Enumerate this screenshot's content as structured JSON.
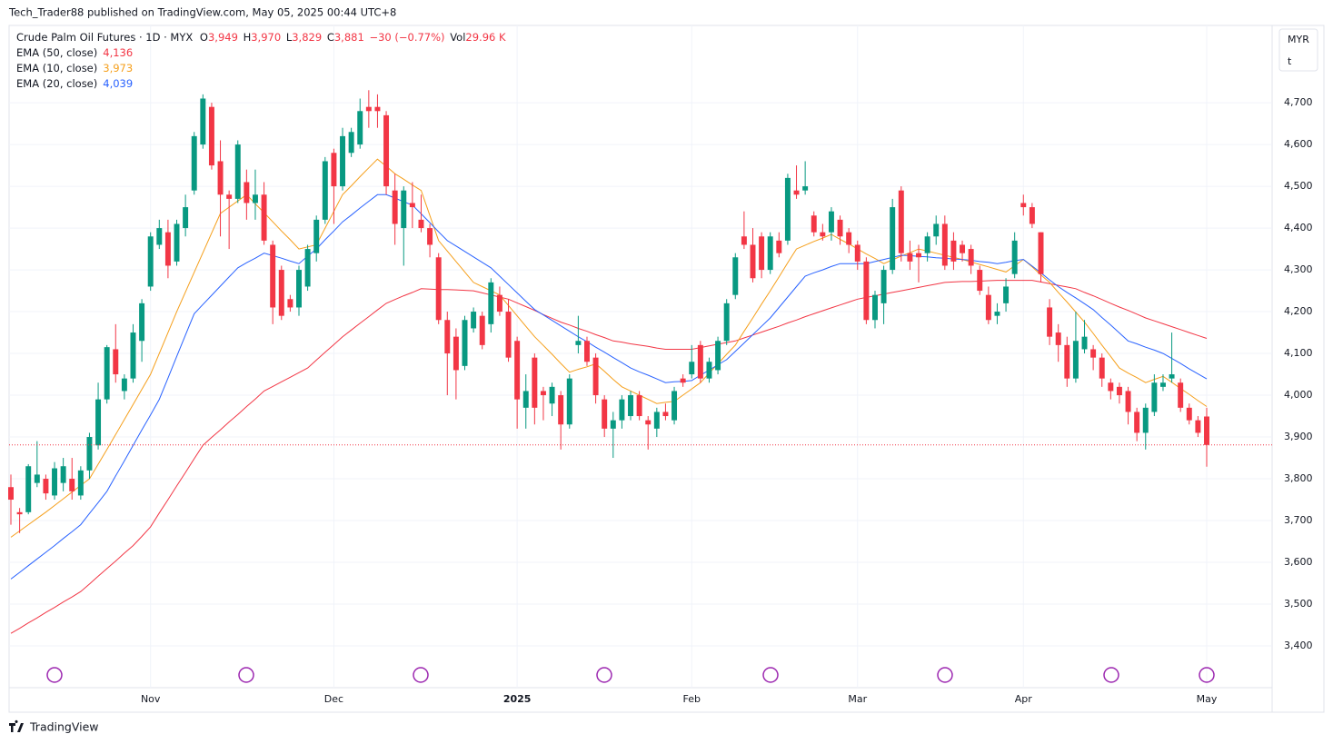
{
  "header": {
    "publisher": "Tech_Trader88 published on TradingView.com, May 05, 2025 00:44 UTC+8",
    "footer": "TradingView"
  },
  "chart_data": {
    "type": "candlestick",
    "symbol": "Crude Palm Oil Futures · 1D · MYX",
    "ohlc": [
      {
        "label": "O",
        "value": "3,949"
      },
      {
        "label": "H",
        "value": "3,970"
      },
      {
        "label": "L",
        "value": "3,829"
      },
      {
        "label": "C",
        "value": "3,881"
      }
    ],
    "change": "−30 (−0.77%)",
    "volume": {
      "label": "Vol",
      "value": "29.96 K"
    },
    "currency": "MYR",
    "unit": "t",
    "up_color": "#089981",
    "down_color": "#f23645",
    "grid": true,
    "categories": [
      null,
      null,
      null,
      null,
      null,
      null,
      null,
      null,
      null,
      null,
      null,
      null,
      null,
      null,
      null,
      null,
      "Nov",
      null,
      null,
      null,
      null,
      null,
      null,
      null,
      null,
      null,
      null,
      null,
      null,
      null,
      null,
      null,
      null,
      null,
      null,
      null,
      null,
      "Dec",
      null,
      null,
      null,
      null,
      null,
      null,
      null,
      null,
      null,
      null,
      null,
      null,
      null,
      null,
      null,
      null,
      null,
      null,
      null,
      null,
      "2025",
      null,
      null,
      null,
      null,
      null,
      null,
      null,
      null,
      null,
      null,
      null,
      null,
      null,
      null,
      null,
      null,
      null,
      null,
      null,
      "Feb",
      null,
      null,
      null,
      null,
      null,
      null,
      null,
      null,
      null,
      null,
      null,
      null,
      null,
      null,
      null,
      null,
      null,
      null,
      "Mar",
      null,
      null,
      null,
      null,
      null,
      null,
      null,
      null,
      null,
      null,
      null,
      null,
      null,
      null,
      null,
      null,
      null,
      null,
      "Apr",
      null,
      null,
      null,
      null,
      null,
      null,
      null,
      null,
      null,
      null,
      null,
      null,
      null,
      null,
      null,
      null,
      null,
      null,
      null,
      null,
      "May"
    ],
    "open": [
      3780,
      3720,
      3720,
      3790,
      3800,
      3760,
      3790,
      3800,
      3760,
      3820,
      3880,
      3990,
      4110,
      4010,
      4040,
      4130,
      4260,
      4360,
      4390,
      4320,
      4400,
      4490,
      4600,
      4690,
      4560,
      4480,
      4470,
      4510,
      4460,
      4480,
      4360,
      4300,
      4230,
      4210,
      4260,
      4340,
      4420,
      4580,
      4500,
      4580,
      4600,
      4690,
      4690,
      4670,
      4490,
      4400,
      4460,
      4420,
      4400,
      4330,
      4180,
      4140,
      4070,
      4160,
      4190,
      4170,
      4240,
      4200,
      4130,
      3970,
      4090,
      4010,
      3980,
      4000,
      3930,
      4120,
      4130,
      4090,
      3990,
      3920,
      3940,
      3950,
      4000,
      3940,
      3920,
      3960,
      3940,
      4040,
      4050,
      4120,
      4040,
      4060,
      4130,
      4240,
      4380,
      4360,
      4380,
      4300,
      4370,
      4370,
      4490,
      4490,
      4430,
      4390,
      4390,
      4420,
      4390,
      4360,
      4320,
      4180,
      4220,
      4300,
      4490,
      4340,
      4340,
      4340,
      4380,
      4410,
      4370,
      4360,
      4350,
      4300,
      4240,
      4190,
      4220,
      4290,
      4460,
      4450,
      4390,
      4210,
      4150,
      4120,
      4040,
      4110,
      4110,
      4090,
      4030,
      4020,
      4010,
      3960,
      3910,
      3960,
      4020,
      4040,
      4030,
      3970,
      3940,
      3949
    ],
    "high": [
      3810,
      3730,
      3835,
      3890,
      3810,
      3840,
      3850,
      3850,
      3830,
      3910,
      4030,
      4120,
      4170,
      4050,
      4170,
      4230,
      4390,
      4420,
      4420,
      4420,
      4480,
      4630,
      4720,
      4700,
      4610,
      4490,
      4610,
      4540,
      4540,
      4510,
      4370,
      4310,
      4240,
      4310,
      4360,
      4430,
      4570,
      4590,
      4640,
      4640,
      4710,
      4730,
      4720,
      4680,
      4530,
      4500,
      4510,
      4480,
      4410,
      4340,
      4200,
      4160,
      4190,
      4210,
      4200,
      4280,
      4260,
      4230,
      4140,
      4050,
      4100,
      4020,
      4030,
      4010,
      4050,
      4190,
      4140,
      4100,
      4000,
      3960,
      4000,
      4010,
      4010,
      3950,
      3970,
      3980,
      4020,
      4050,
      4120,
      4130,
      4090,
      4140,
      4230,
      4340,
      4440,
      4400,
      4390,
      4390,
      4390,
      4530,
      4550,
      4560,
      4440,
      4410,
      4450,
      4430,
      4400,
      4370,
      4330,
      4250,
      4310,
      4470,
      4500,
      4370,
      4360,
      4390,
      4430,
      4430,
      4390,
      4370,
      4360,
      4310,
      4260,
      4220,
      4280,
      4390,
      4480,
      4460,
      4390,
      4230,
      4170,
      4140,
      4200,
      4180,
      4120,
      4100,
      4040,
      4030,
      4020,
      3970,
      3980,
      4050,
      4050,
      4150,
      4040,
      3980,
      3950,
      3970
    ],
    "low": [
      3690,
      3670,
      3715,
      3780,
      3750,
      3750,
      3770,
      3750,
      3750,
      3800,
      3870,
      3980,
      4030,
      3990,
      4030,
      4080,
      4250,
      4350,
      4280,
      4310,
      4380,
      4480,
      4590,
      4540,
      4380,
      4350,
      4460,
      4420,
      4420,
      4360,
      4170,
      4180,
      4200,
      4190,
      4250,
      4320,
      4410,
      4410,
      4490,
      4570,
      4590,
      4640,
      4640,
      4480,
      4360,
      4310,
      4400,
      4390,
      4330,
      4170,
      4000,
      3990,
      4060,
      4150,
      4110,
      4150,
      4190,
      4080,
      3920,
      3920,
      3930,
      3940,
      3950,
      3870,
      3920,
      4100,
      4070,
      3980,
      3900,
      3850,
      3920,
      3940,
      3940,
      3870,
      3900,
      3940,
      3930,
      4020,
      4040,
      4030,
      4030,
      4050,
      4120,
      4230,
      4350,
      4270,
      4280,
      4290,
      4330,
      4360,
      4470,
      4480,
      4380,
      4370,
      4370,
      4360,
      4340,
      4300,
      4170,
      4160,
      4170,
      4290,
      4320,
      4300,
      4270,
      4320,
      4360,
      4300,
      4300,
      4320,
      4290,
      4240,
      4170,
      4170,
      4200,
      4280,
      4430,
      4400,
      4270,
      4120,
      4080,
      4020,
      4030,
      4100,
      4060,
      4020,
      3990,
      3980,
      3930,
      3890,
      3870,
      3950,
      4010,
      4030,
      3960,
      3930,
      3900,
      3829
    ],
    "close": [
      3750,
      3715,
      3830,
      3810,
      3765,
      3825,
      3830,
      3770,
      3820,
      3900,
      3990,
      4115,
      4050,
      4040,
      4150,
      4220,
      4380,
      4400,
      4310,
      4410,
      4450,
      4620,
      4710,
      4550,
      4480,
      4470,
      4600,
      4460,
      4480,
      4370,
      4210,
      4190,
      4210,
      4300,
      4350,
      4420,
      4560,
      4500,
      4620,
      4630,
      4680,
      4680,
      4680,
      4500,
      4410,
      4490,
      4450,
      4400,
      4360,
      4180,
      4100,
      4060,
      4180,
      4200,
      4120,
      4270,
      4200,
      4090,
      3990,
      4010,
      3970,
      4000,
      4020,
      3930,
      4040,
      4130,
      4080,
      4000,
      3920,
      3940,
      3990,
      4000,
      3950,
      3930,
      3960,
      3950,
      4010,
      4030,
      4080,
      4040,
      4080,
      4130,
      4220,
      4330,
      4360,
      4280,
      4300,
      4380,
      4340,
      4520,
      4480,
      4500,
      4390,
      4380,
      4440,
      4380,
      4360,
      4320,
      4180,
      4240,
      4300,
      4450,
      4340,
      4320,
      4330,
      4380,
      4410,
      4310,
      4320,
      4340,
      4310,
      4250,
      4180,
      4200,
      4260,
      4370,
      4450,
      4410,
      4290,
      4140,
      4120,
      4040,
      4130,
      4140,
      4090,
      4040,
      4010,
      4000,
      3960,
      3910,
      3970,
      4030,
      4030,
      4050,
      3970,
      3940,
      3910,
      3881
    ],
    "series": [
      {
        "name": "EMA (50, close)",
        "legend_value": "4,136",
        "color": "#f23645",
        "values": [
          3430,
          3442,
          3455,
          3467,
          3480,
          3492,
          3505,
          3517,
          3530,
          3548,
          3567,
          3585,
          3603,
          3622,
          3640,
          3662,
          3685,
          3718,
          3750,
          3783,
          3815,
          3848,
          3880,
          3899,
          3917,
          3936,
          3954,
          3973,
          3991,
          4010,
          4021,
          4032,
          4043,
          4054,
          4065,
          4084,
          4103,
          4121,
          4140,
          4156,
          4172,
          4188,
          4204,
          4220,
          4229,
          4238,
          4246,
          4255,
          4254,
          4253,
          4253,
          4252,
          4251,
          4250,
          4245,
          4240,
          4235,
          4230,
          4221,
          4212,
          4203,
          4193,
          4184,
          4175,
          4168,
          4160,
          4153,
          4145,
          4138,
          4130,
          4127,
          4123,
          4120,
          4117,
          4113,
          4110,
          4110,
          4110,
          4110,
          4114,
          4118,
          4122,
          4126,
          4130,
          4137,
          4144,
          4151,
          4158,
          4165,
          4173,
          4180,
          4188,
          4195,
          4202,
          4209,
          4216,
          4223,
          4230,
          4234,
          4238,
          4242,
          4246,
          4250,
          4254,
          4258,
          4262,
          4266,
          4270,
          4271,
          4272,
          4272,
          4273,
          4274,
          4275,
          4275,
          4275,
          4275,
          4275,
          4271,
          4267,
          4263,
          4259,
          4255,
          4246,
          4238,
          4229,
          4220,
          4211,
          4203,
          4194,
          4185,
          4178,
          4171,
          4164,
          4157,
          4150,
          4143,
          4136
        ]
      },
      {
        "name": "EMA (10, close)",
        "legend_value": "3,973",
        "color": "#f59f1b",
        "values": [
          3660,
          3675,
          3690,
          3705,
          3720,
          3736,
          3752,
          3768,
          3784,
          3800,
          3835,
          3870,
          3906,
          3942,
          3978,
          4014,
          4050,
          4100,
          4150,
          4200,
          4247,
          4294,
          4341,
          4388,
          4435,
          4450,
          4465,
          4480,
          4458,
          4437,
          4415,
          4393,
          4372,
          4350,
          4355,
          4360,
          4400,
          4440,
          4480,
          4501,
          4523,
          4544,
          4565,
          4548,
          4530,
          4517,
          4503,
          4490,
          4430,
          4370,
          4345,
          4320,
          4295,
          4270,
          4260,
          4250,
          4240,
          4215,
          4190,
          4165,
          4140,
          4119,
          4098,
          4076,
          4055,
          4062,
          4068,
          4075,
          4057,
          4038,
          4020,
          4010,
          4000,
          3990,
          3980,
          3983,
          3985,
          4000,
          4015,
          4030,
          4053,
          4075,
          4098,
          4120,
          4153,
          4185,
          4218,
          4250,
          4283,
          4317,
          4350,
          4359,
          4368,
          4376,
          4385,
          4373,
          4362,
          4350,
          4338,
          4327,
          4315,
          4324,
          4333,
          4341,
          4350,
          4345,
          4340,
          4335,
          4330,
          4325,
          4319,
          4313,
          4307,
          4301,
          4295,
          4310,
          4325,
          4307,
          4288,
          4270,
          4246,
          4223,
          4199,
          4175,
          4148,
          4120,
          4093,
          4065,
          4053,
          4042,
          4030,
          4038,
          4045,
          4031,
          4016,
          4002,
          3987,
          3973
        ]
      },
      {
        "name": "EMA (20, close)",
        "legend_value": "4,039",
        "color": "#2962ff",
        "values": [
          3560,
          3576,
          3592,
          3608,
          3624,
          3640,
          3657,
          3673,
          3690,
          3717,
          3743,
          3770,
          3807,
          3843,
          3880,
          3917,
          3953,
          3990,
          4041,
          4093,
          4144,
          4195,
          4217,
          4239,
          4261,
          4283,
          4305,
          4317,
          4328,
          4340,
          4334,
          4328,
          4321,
          4315,
          4333,
          4350,
          4372,
          4393,
          4415,
          4431,
          4448,
          4464,
          4480,
          4480,
          4472,
          4463,
          4455,
          4434,
          4413,
          4391,
          4370,
          4357,
          4344,
          4331,
          4318,
          4305,
          4285,
          4265,
          4245,
          4225,
          4205,
          4192,
          4179,
          4166,
          4153,
          4140,
          4128,
          4115,
          4103,
          4090,
          4078,
          4065,
          4056,
          4048,
          4039,
          4030,
          4032,
          4033,
          4035,
          4048,
          4060,
          4073,
          4085,
          4105,
          4125,
          4145,
          4165,
          4185,
          4210,
          4235,
          4260,
          4285,
          4293,
          4300,
          4308,
          4315,
          4315,
          4315,
          4315,
          4320,
          4325,
          4330,
          4335,
          4334,
          4332,
          4331,
          4329,
          4328,
          4326,
          4325,
          4323,
          4320,
          4318,
          4315,
          4318,
          4322,
          4325,
          4309,
          4293,
          4276,
          4260,
          4246,
          4233,
          4219,
          4205,
          4186,
          4168,
          4149,
          4130,
          4123,
          4115,
          4108,
          4100,
          4088,
          4076,
          4063,
          4051,
          4039
        ]
      }
    ],
    "ylim": [
      3300,
      4885
    ],
    "yticks": [
      {
        "value": 3400,
        "label": "3,400"
      },
      {
        "value": 3500,
        "label": "3,500"
      },
      {
        "value": 3600,
        "label": "3,600"
      },
      {
        "value": 3700,
        "label": "3,700"
      },
      {
        "value": 3800,
        "label": "3,800"
      },
      {
        "value": 3900,
        "label": "3,900"
      },
      {
        "value": 4000,
        "label": "4,000"
      },
      {
        "value": 4100,
        "label": "4,100"
      },
      {
        "value": 4200,
        "label": "4,200"
      },
      {
        "value": 4300,
        "label": "4,300"
      },
      {
        "value": 4400,
        "label": "4,400"
      },
      {
        "value": 4500,
        "label": "4,500"
      },
      {
        "value": 4600,
        "label": "4,600"
      },
      {
        "value": 4700,
        "label": "4,700"
      }
    ]
  }
}
